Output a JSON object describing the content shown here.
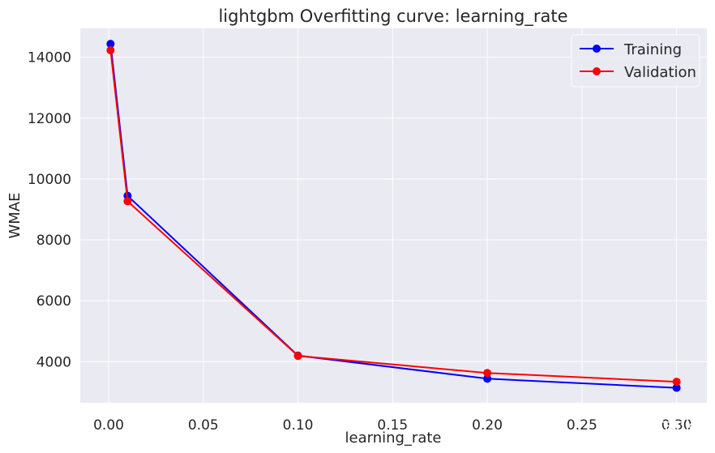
{
  "chart_data": {
    "type": "line",
    "title": "lightgbm Overfitting curve: learning_rate",
    "xlabel": "learning_rate",
    "ylabel": "WMAE",
    "xlim": [
      -0.015,
      0.316
    ],
    "ylim": [
      2650,
      14950
    ],
    "xticks": [
      "0.00",
      "0.05",
      "0.10",
      "0.15",
      "0.20",
      "0.25",
      "0.30"
    ],
    "yticks": [
      "4000",
      "6000",
      "8000",
      "10000",
      "12000",
      "14000"
    ],
    "grid": true,
    "legend_position": "top-right",
    "x": [
      0.001,
      0.01,
      0.1,
      0.2,
      0.3
    ],
    "series": [
      {
        "name": "Training",
        "color": "#0000ff",
        "values": [
          14440,
          9450,
          4200,
          3440,
          3140
        ]
      },
      {
        "name": "Validation",
        "color": "#ff0000",
        "values": [
          14230,
          9270,
          4190,
          3630,
          3340
        ]
      }
    ],
    "background_color": "#eaeaf2",
    "grid_color": "#ffffff"
  },
  "watermark": {
    "text": "alitrack",
    "icon": "wechat-icon"
  }
}
